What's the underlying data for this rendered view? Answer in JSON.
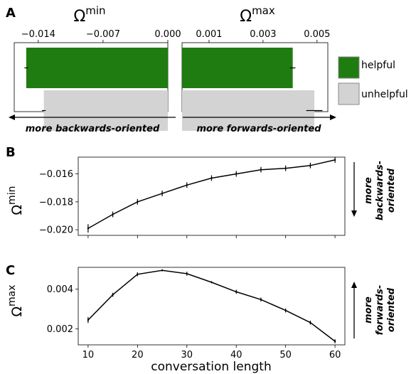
{
  "panel_letters": {
    "a": "A",
    "b": "B",
    "c": "C"
  },
  "chart_data": [
    {
      "id": "A-min",
      "type": "bar",
      "orientation": "horizontal",
      "title": "Ωmin",
      "title_base": "Ω",
      "title_sup": "min",
      "categories": [
        "helpful",
        "unhelpful"
      ],
      "values": [
        -0.0153,
        -0.0134
      ],
      "errors": [
        0.0002,
        0.0002
      ],
      "xlim": [
        -0.0166,
        0.0
      ],
      "xticks": [
        -0.014,
        -0.007,
        0.0
      ],
      "xtick_labels": [
        "−0.014",
        "−0.007",
        "0.000"
      ],
      "x_axis_position": "top",
      "colors": [
        "#1f7c10",
        "#d3d3d3"
      ],
      "direction_label": "more backwards-oriented",
      "direction_arrow": "left"
    },
    {
      "id": "A-max",
      "type": "bar",
      "orientation": "horizontal",
      "title": "Ωmax",
      "title_base": "Ω",
      "title_sup": "max",
      "categories": [
        "helpful",
        "unhelpful"
      ],
      "values": [
        0.0041,
        0.0049
      ],
      "errors": [
        0.0001,
        0.0003
      ],
      "xlim": [
        0.0,
        0.0054
      ],
      "xticks": [
        0.001,
        0.003,
        0.005
      ],
      "xtick_labels": [
        "0.001",
        "0.003",
        "0.005"
      ],
      "x_axis_position": "top",
      "colors": [
        "#1f7c10",
        "#d3d3d3"
      ],
      "direction_label": "more forwards-oriented",
      "direction_arrow": "right"
    },
    {
      "id": "B",
      "type": "line",
      "x": [
        10,
        15,
        20,
        25,
        30,
        35,
        40,
        45,
        50,
        55,
        60
      ],
      "y": [
        -0.0199,
        -0.0189,
        -0.018,
        -0.0174,
        -0.0168,
        -0.0163,
        -0.016,
        -0.0157,
        -0.0156,
        -0.0154,
        -0.015
      ],
      "errors": [
        0.0003,
        0.0002,
        0.0002,
        0.0002,
        0.0002,
        0.0002,
        0.0002,
        0.0002,
        0.0002,
        0.0002,
        0.0002
      ],
      "ylabel": "Ωmin",
      "ylabel_base": "Ω",
      "ylabel_sup": "min",
      "xlim": [
        8,
        62
      ],
      "ylim": [
        -0.0204,
        -0.0148
      ],
      "xticks": [
        10,
        20,
        30,
        40,
        50,
        60
      ],
      "yticks": [
        -0.02,
        -0.018,
        -0.016
      ],
      "ytick_labels": [
        "−0.020",
        "−0.018",
        "−0.016"
      ],
      "color": "#000000",
      "direction_label_lines": [
        "more",
        "backwards-",
        "oriented"
      ],
      "direction_arrow": "down"
    },
    {
      "id": "C",
      "type": "line",
      "x": [
        10,
        15,
        20,
        25,
        30,
        35,
        40,
        45,
        50,
        55,
        60
      ],
      "y": [
        0.00245,
        0.00372,
        0.00475,
        0.00495,
        0.00478,
        0.00435,
        0.00387,
        0.00348,
        0.00293,
        0.00232,
        0.00138
      ],
      "errors": [
        0.00015,
        0.0001,
        0.0001,
        5e-05,
        0.0001,
        5e-05,
        0.0001,
        0.0001,
        0.0001,
        0.0001,
        0.0001
      ],
      "xlabel": "conversation length",
      "ylabel": "Ωmax",
      "ylabel_base": "Ω",
      "ylabel_sup": "max",
      "xlim": [
        8,
        62
      ],
      "ylim": [
        0.0012,
        0.0051
      ],
      "xticks": [
        10,
        20,
        30,
        40,
        50,
        60
      ],
      "yticks": [
        0.002,
        0.004
      ],
      "ytick_labels": [
        "0.002",
        "0.004"
      ],
      "color": "#000000",
      "direction_label_lines": [
        "more",
        "forwards-",
        "oriented"
      ],
      "direction_arrow": "up"
    }
  ],
  "legend": {
    "items": [
      {
        "label": "helpful",
        "color": "#1f7c10"
      },
      {
        "label": "unhelpful",
        "color": "#d3d3d3"
      }
    ]
  }
}
